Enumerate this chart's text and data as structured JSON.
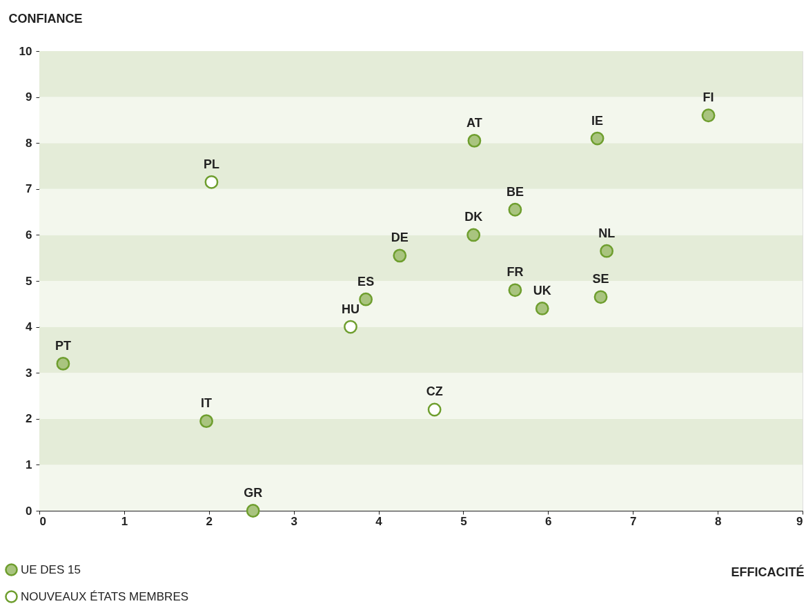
{
  "chart_data": {
    "type": "scatter",
    "xlabel": "EFFICACITÉ",
    "ylabel": "CONFIANCE",
    "xlim": [
      0,
      9
    ],
    "xticks": [
      0,
      1,
      2,
      3,
      4,
      5,
      6,
      7,
      8,
      9
    ],
    "ylim": [
      0,
      10
    ],
    "yticks": [
      0,
      1,
      2,
      3,
      4,
      5,
      6,
      7,
      8,
      9,
      10
    ],
    "grid": false,
    "legend": "bottom left",
    "marker": "circle",
    "bands": [
      {
        "axis": "y",
        "from": 0,
        "to": 1,
        "color": "#f3f7ed"
      },
      {
        "axis": "y",
        "from": 1,
        "to": 2,
        "color": "#e4ecd8"
      },
      {
        "axis": "y",
        "from": 2,
        "to": 3,
        "color": "#f3f7ed"
      },
      {
        "axis": "y",
        "from": 3,
        "to": 4,
        "color": "#e4ecd8"
      },
      {
        "axis": "y",
        "from": 4,
        "to": 5,
        "color": "#f3f7ed"
      },
      {
        "axis": "y",
        "from": 5,
        "to": 6,
        "color": "#e4ecd8"
      },
      {
        "axis": "y",
        "from": 6,
        "to": 7,
        "color": "#f3f7ed"
      },
      {
        "axis": "y",
        "from": 7,
        "to": 8,
        "color": "#e4ecd8"
      },
      {
        "axis": "y",
        "from": 8,
        "to": 9,
        "color": "#f3f7ed"
      },
      {
        "axis": "y",
        "from": 9,
        "to": 10,
        "color": "#e4ecd8"
      }
    ],
    "series": [
      {
        "name": "UE DES 15",
        "color": "#a9c47f",
        "x": [
          0.28,
          1.97,
          2.52,
          3.85,
          4.25,
          5.13,
          5.12,
          5.61,
          5.61,
          5.93,
          6.58,
          6.62,
          6.69,
          7.89
        ],
        "values": [
          3.2,
          1.95,
          0,
          4.6,
          5.55,
          8.05,
          6.0,
          6.55,
          4.8,
          4.4,
          8.1,
          4.65,
          5.65,
          8.6
        ],
        "value_labels": [
          "PT",
          "IT",
          "GR",
          "ES",
          "DE",
          "AT",
          "DK",
          "BE",
          "FR",
          "UK",
          "IE",
          "SE",
          "NL",
          "FI"
        ]
      },
      {
        "name": "NOUVEAUX ÉTATS MEMBRES",
        "color": "#ffffff",
        "x": [
          2.03,
          3.67,
          4.66
        ],
        "values": [
          7.15,
          4.0,
          2.2
        ],
        "value_labels": [
          "PL",
          "HU",
          "CZ"
        ]
      }
    ]
  }
}
